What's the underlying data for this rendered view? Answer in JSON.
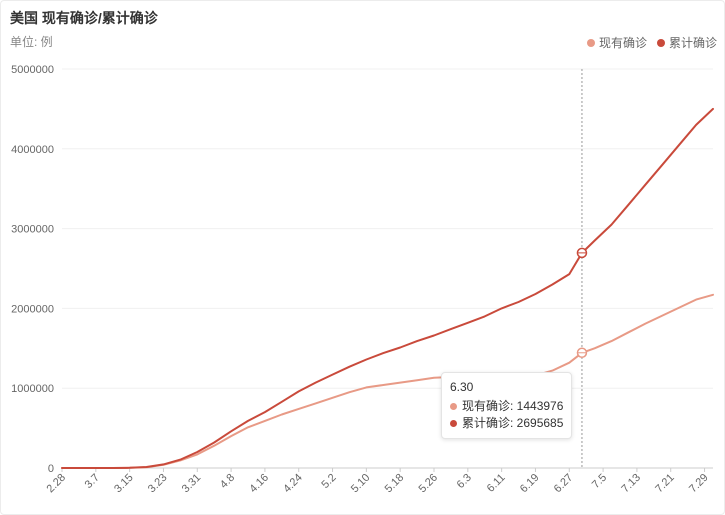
{
  "title": "美国 现有确诊/累计确诊",
  "unit_label": "单位: 例",
  "colors": {
    "current": "#e89a86",
    "cumulative": "#c94a3b",
    "grid": "#f0f0f0",
    "axis": "#cccccc",
    "crosshair": "#999999"
  },
  "chart_data": {
    "type": "line",
    "title": "美国 现有确诊/累计确诊",
    "ylabel": "单位: 例",
    "ylim": [
      0,
      5000000
    ],
    "yticks": [
      0,
      1000000,
      2000000,
      3000000,
      4000000,
      5000000
    ],
    "ytick_labels": [
      "0",
      "1000000",
      "2000000",
      "3000000",
      "4000000",
      "5000000"
    ],
    "xtick_labels": [
      "2.28",
      "3.7",
      "3.15",
      "3.23",
      "3.31",
      "4.8",
      "4.16",
      "4.24",
      "5.2",
      "5.10",
      "5.18",
      "5.26",
      "6.3",
      "6.11",
      "6.19",
      "6.27",
      "7.5",
      "7.13",
      "7.21",
      "7.29"
    ],
    "legend_position": "top-right",
    "grid": true,
    "x": [
      "2.28",
      "3.3",
      "3.7",
      "3.11",
      "3.15",
      "3.19",
      "3.23",
      "3.27",
      "3.31",
      "4.4",
      "4.8",
      "4.12",
      "4.16",
      "4.20",
      "4.24",
      "4.28",
      "5.2",
      "5.6",
      "5.10",
      "5.14",
      "5.18",
      "5.22",
      "5.26",
      "5.30",
      "6.3",
      "6.7",
      "6.11",
      "6.15",
      "6.19",
      "6.23",
      "6.27",
      "6.30",
      "7.3",
      "7.7",
      "7.11",
      "7.15",
      "7.19",
      "7.23",
      "7.27",
      "7.31"
    ],
    "series": [
      {
        "name": "现有确诊",
        "values": [
          0,
          0,
          0,
          0,
          2000,
          10000,
          40000,
          95000,
          170000,
          280000,
          400000,
          510000,
          590000,
          670000,
          740000,
          810000,
          880000,
          950000,
          1010000,
          1040000,
          1070000,
          1100000,
          1130000,
          1140000,
          1150000,
          1140000,
          1120000,
          1120000,
          1160000,
          1220000,
          1320000,
          1443976,
          1500000,
          1590000,
          1700000,
          1810000,
          1910000,
          2010000,
          2110000,
          2170000
        ]
      },
      {
        "name": "累计确诊",
        "values": [
          0,
          0,
          0,
          0,
          3000,
          12000,
          45000,
          105000,
          200000,
          320000,
          460000,
          590000,
          700000,
          830000,
          960000,
          1070000,
          1170000,
          1270000,
          1360000,
          1440000,
          1510000,
          1590000,
          1660000,
          1740000,
          1820000,
          1900000,
          2000000,
          2080000,
          2180000,
          2300000,
          2430000,
          2695685,
          2850000,
          3050000,
          3300000,
          3550000,
          3800000,
          4050000,
          4300000,
          4500000
        ]
      }
    ],
    "tooltip": {
      "date": "6.30",
      "current_label": "现有确诊: 1443976",
      "cumulative_label": "累计确诊: 2695685"
    }
  }
}
